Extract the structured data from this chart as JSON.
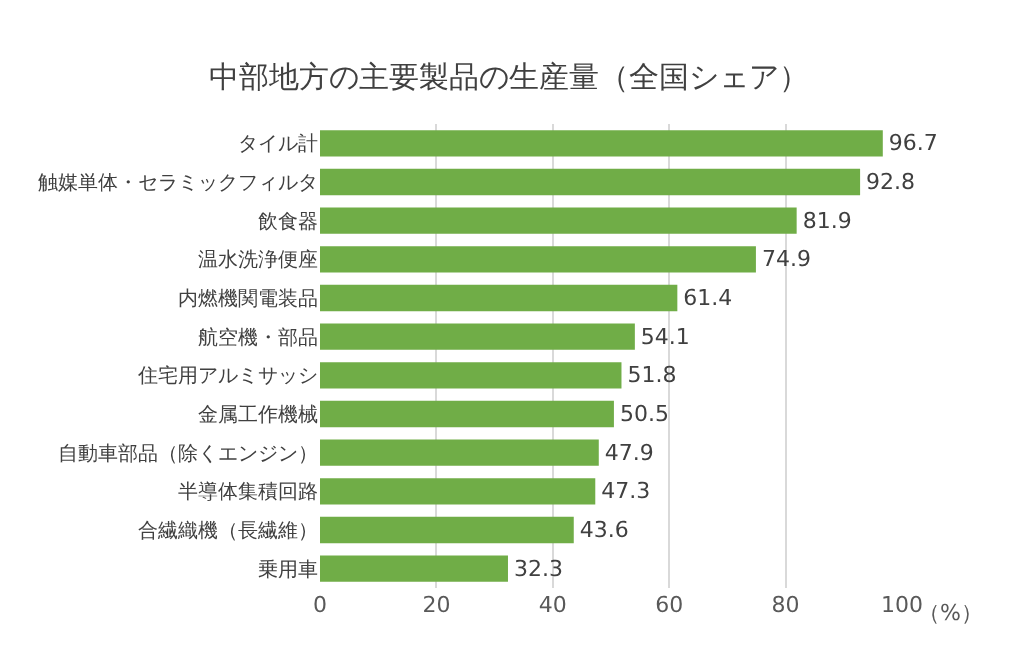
{
  "chart_data": {
    "type": "bar",
    "orientation": "horizontal",
    "title": "中部地方の主要製品の生産量（全国シェア）",
    "xlabel": "（%）",
    "categories": [
      "タイル計",
      "触媒単体・セラミックフィルタ",
      "飲食器",
      "温水洗浄便座",
      "内燃機関電装品",
      "航空機・部品",
      "住宅用アルミサッシ",
      "金属工作機械",
      "自動車部品（除くエンジン）",
      "半導体集積回路",
      "合繊織機（長繊維）",
      "乗用車"
    ],
    "values": [
      96.7,
      92.8,
      81.9,
      74.9,
      61.4,
      54.1,
      51.8,
      50.5,
      47.9,
      47.3,
      43.6,
      32.3
    ],
    "color": "#70ad47",
    "xlim": [
      0,
      100
    ],
    "xticks": [
      0,
      20,
      40,
      60,
      80,
      100
    ],
    "grid": "x",
    "data_labels": true
  }
}
